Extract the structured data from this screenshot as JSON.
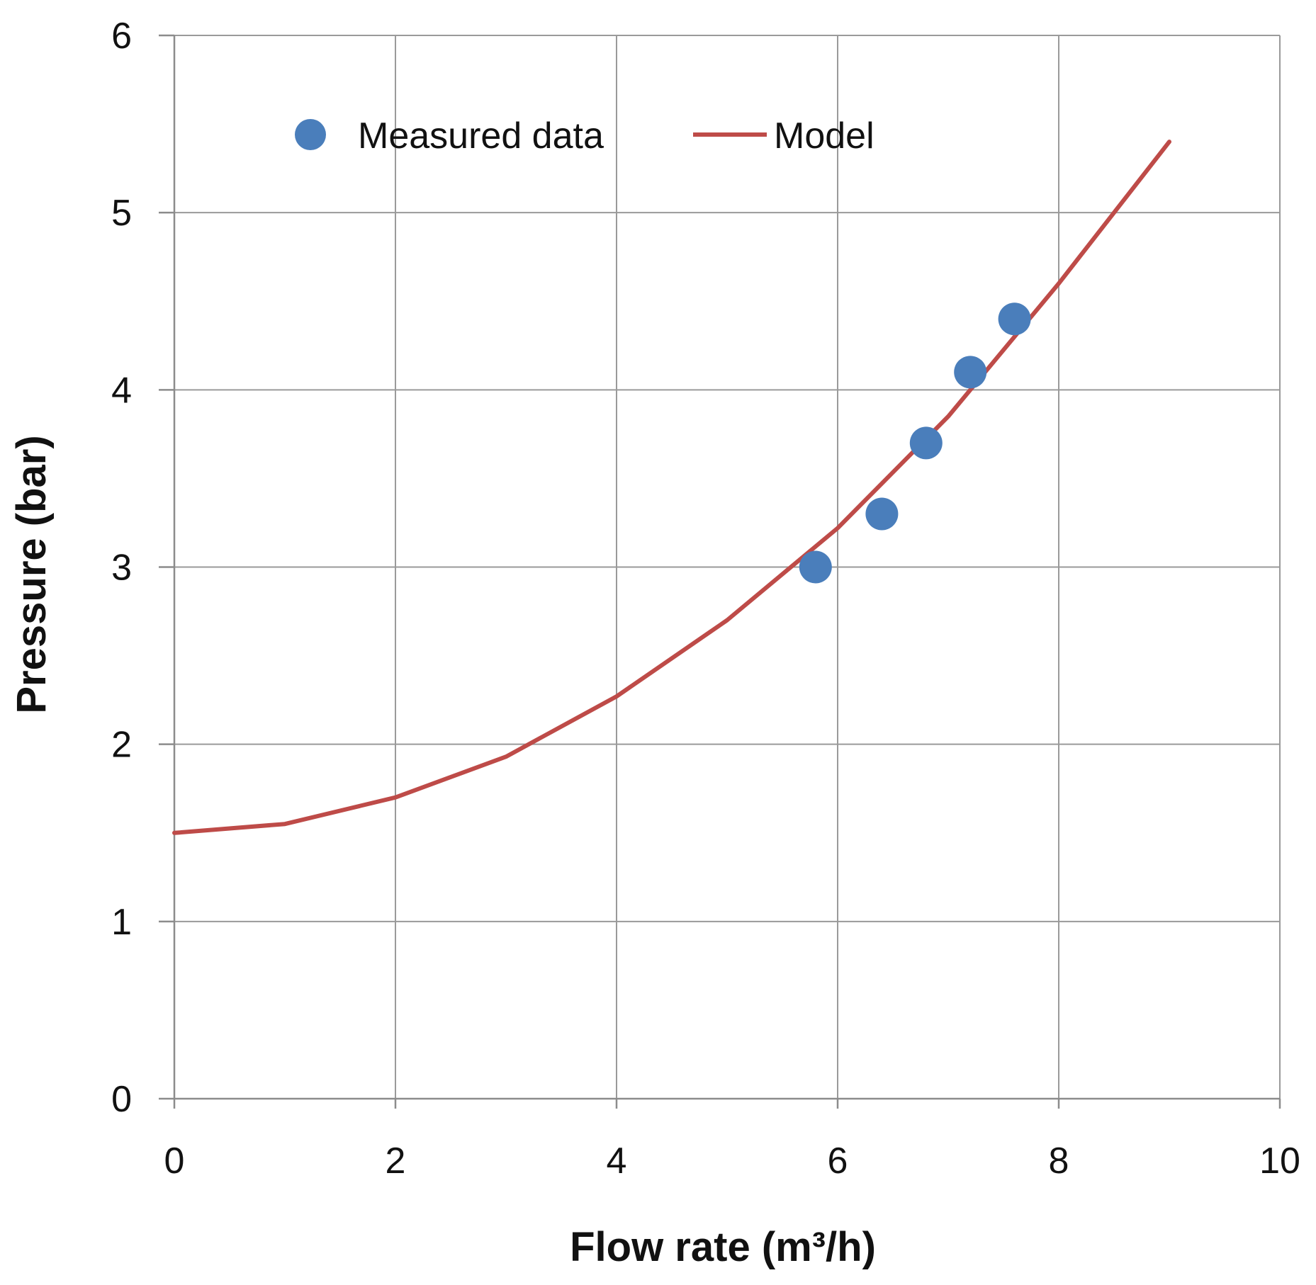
{
  "chart_data": {
    "type": "scatter",
    "xlabel": "Flow rate (m³/h)",
    "ylabel": "Pressure (bar)",
    "xlim": [
      0,
      10
    ],
    "ylim": [
      0,
      6
    ],
    "x_ticks": [
      "0",
      "2",
      "4",
      "6",
      "8",
      "10"
    ],
    "y_ticks": [
      "0",
      "1",
      "2",
      "3",
      "4",
      "5",
      "6"
    ],
    "grid": true,
    "legend_position": "top",
    "series": [
      {
        "name": "Measured data",
        "kind": "scatter",
        "color": "#4a7ebb",
        "points": [
          {
            "x": 5.8,
            "y": 3.0
          },
          {
            "x": 6.4,
            "y": 3.3
          },
          {
            "x": 6.8,
            "y": 3.7
          },
          {
            "x": 7.2,
            "y": 4.1
          },
          {
            "x": 7.6,
            "y": 4.4
          }
        ]
      },
      {
        "name": "Model",
        "kind": "line",
        "color": "#be4b48",
        "points": [
          {
            "x": 0,
            "y": 1.5
          },
          {
            "x": 1,
            "y": 1.55
          },
          {
            "x": 2,
            "y": 1.7
          },
          {
            "x": 3,
            "y": 1.93
          },
          {
            "x": 4,
            "y": 2.27
          },
          {
            "x": 5,
            "y": 2.7
          },
          {
            "x": 6,
            "y": 3.22
          },
          {
            "x": 7,
            "y": 3.85
          },
          {
            "x": 8,
            "y": 4.6
          },
          {
            "x": 9,
            "y": 5.4
          }
        ]
      }
    ]
  }
}
